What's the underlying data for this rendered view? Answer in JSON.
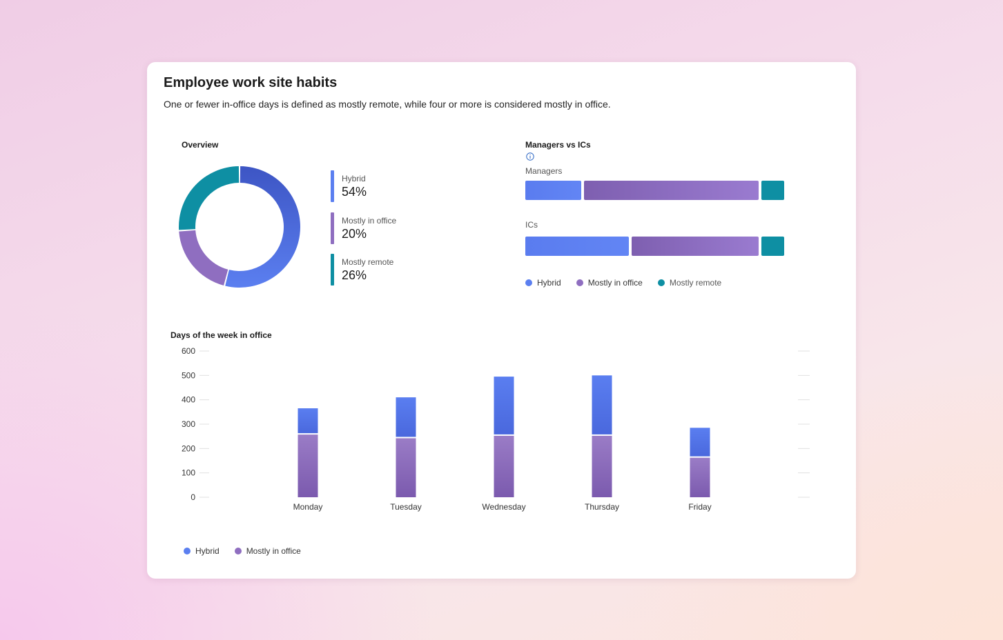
{
  "header": {
    "title": "Employee work site habits",
    "subtitle": "One or fewer in-office days is defined as mostly remote, while four or more is considered mostly in office."
  },
  "colors": {
    "hybrid": "#5b7ff0",
    "mostly_in_office": "#8f6ec0",
    "mostly_remote": "#0e8fa3"
  },
  "overview": {
    "label": "Overview",
    "legend": [
      {
        "label": "Hybrid",
        "value": "54%"
      },
      {
        "label": "Mostly in office",
        "value": "20%"
      },
      {
        "label": "Mostly remote",
        "value": "26%"
      }
    ]
  },
  "managers_vs_ics": {
    "label": "Managers vs ICs",
    "info_icon": "info-icon",
    "groups": [
      {
        "label": "Managers"
      },
      {
        "label": "ICs"
      }
    ],
    "legend": [
      "Hybrid",
      "Mostly in office",
      "Mostly remote"
    ]
  },
  "days_chart": {
    "label": "Days of the week in office",
    "legend": [
      "Hybrid",
      "Mostly in office"
    ]
  },
  "chart_data": [
    {
      "type": "pie",
      "title": "Overview",
      "donut": true,
      "categories": [
        "Hybrid",
        "Mostly in office",
        "Mostly remote"
      ],
      "values": [
        54,
        20,
        26
      ],
      "units": "%"
    },
    {
      "type": "bar",
      "title": "Managers vs ICs",
      "orientation": "horizontal",
      "stacked": true,
      "categories": [
        "Managers",
        "ICs"
      ],
      "series": [
        {
          "name": "Hybrid",
          "values": [
            22,
            41
          ]
        },
        {
          "name": "Mostly in office",
          "values": [
            69,
            50
          ]
        },
        {
          "name": "Mostly remote",
          "values": [
            9,
            9
          ]
        }
      ],
      "units": "%"
    },
    {
      "type": "bar",
      "title": "Days of the week in office",
      "stacked": true,
      "categories": [
        "Monday",
        "Tuesday",
        "Wednesday",
        "Thursday",
        "Friday"
      ],
      "series": [
        {
          "name": "Hybrid",
          "values": [
            105,
            165,
            240,
            245,
            120
          ]
        },
        {
          "name": "Mostly in office",
          "values": [
            260,
            245,
            255,
            255,
            165
          ]
        }
      ],
      "ylim": [
        0,
        600
      ],
      "yticks": [
        0,
        100,
        200,
        300,
        400,
        500,
        600
      ],
      "xlabel": "",
      "ylabel": "",
      "legend": "bottom-left"
    }
  ]
}
